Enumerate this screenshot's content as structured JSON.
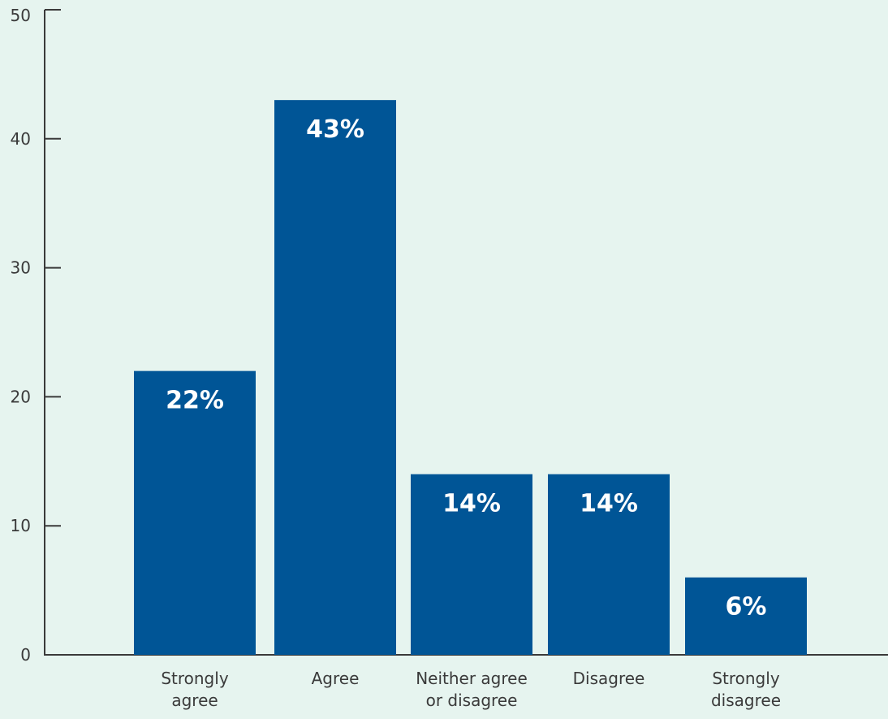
{
  "colors": {
    "background": "#e6f4ef",
    "bar": "#005596",
    "axis": "#3a3a3a",
    "label_text": "#ffffff"
  },
  "chart_data": {
    "type": "bar",
    "title": "",
    "xlabel": "",
    "ylabel": "",
    "categories": [
      [
        "Strongly",
        "agree"
      ],
      [
        "Agree"
      ],
      [
        "Neither agree",
        "or disagree"
      ],
      [
        "Disagree"
      ],
      [
        "Strongly",
        "disagree"
      ]
    ],
    "values": [
      22,
      43,
      14,
      14,
      6
    ],
    "data_labels": [
      "22%",
      "43%",
      "14%",
      "14%",
      "6%"
    ],
    "ylim": [
      0,
      50
    ],
    "yticks": [
      0,
      10,
      20,
      30,
      40,
      50
    ],
    "grid": false,
    "legend": "none"
  }
}
